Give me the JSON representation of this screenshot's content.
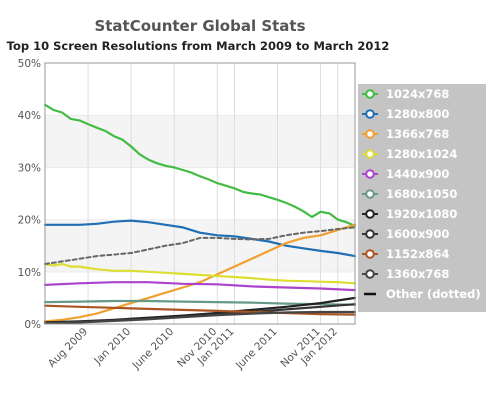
{
  "chart_data": {
    "type": "line",
    "title": "StatCounter Global Stats",
    "subtitle": "Top 10 Screen Resolutions from March 2009 to March 2012",
    "xlabel": "",
    "ylabel": "",
    "y_ticks": [
      "0%",
      "10%",
      "20%",
      "30%",
      "40%",
      "50%"
    ],
    "ylim": [
      0,
      50
    ],
    "x_ticks": [
      {
        "label": "Aug 2009",
        "x": 5
      },
      {
        "label": "Jan 2010",
        "x": 10
      },
      {
        "label": "June 2010",
        "x": 15
      },
      {
        "label": "Nov 2010",
        "x": 20
      },
      {
        "label": "Jan 2011",
        "x": 22
      },
      {
        "label": "June 2011",
        "x": 27
      },
      {
        "label": "Nov 2011",
        "x": 32
      },
      {
        "label": "Jan 2012",
        "x": 34
      }
    ],
    "xlim": [
      0,
      36
    ],
    "grid": "horizontal bands",
    "legend_position": "right",
    "series": [
      {
        "name": "1024x768",
        "color": "#44bb44",
        "dotted": false,
        "x": [
          0,
          1,
          2,
          3,
          4,
          5,
          6,
          7,
          8,
          9,
          10,
          11,
          12,
          13,
          14,
          15,
          16,
          17,
          18,
          19,
          20,
          21,
          22,
          23,
          24,
          25,
          26,
          27,
          28,
          29,
          30,
          31,
          32,
          33,
          34,
          35,
          36
        ],
        "y": [
          42,
          41,
          40.5,
          39.3,
          39,
          38.3,
          37.6,
          37,
          36,
          35.3,
          34,
          32.5,
          31.5,
          30.8,
          30.3,
          30,
          29.5,
          29,
          28.3,
          27.7,
          27,
          26.5,
          26,
          25.3,
          25,
          24.8,
          24.3,
          23.8,
          23.2,
          22.5,
          21.6,
          20.5,
          21.5,
          21.2,
          20,
          19.5,
          18.8
        ]
      },
      {
        "name": "1280x800",
        "color": "#1f6fb5",
        "dotted": false,
        "x": [
          0,
          2,
          4,
          6,
          8,
          10,
          12,
          14,
          16,
          18,
          20,
          22,
          24,
          26,
          28,
          30,
          32,
          34,
          36
        ],
        "y": [
          19,
          19,
          19,
          19.2,
          19.6,
          19.8,
          19.5,
          19,
          18.5,
          17.5,
          17,
          16.8,
          16.3,
          15.8,
          15,
          14.5,
          14,
          13.6,
          13
        ]
      },
      {
        "name": "1366x768",
        "color": "#f0a030",
        "dotted": false,
        "x": [
          0,
          2,
          4,
          6,
          8,
          10,
          12,
          14,
          16,
          18,
          20,
          22,
          24,
          26,
          28,
          30,
          32,
          34,
          36
        ],
        "y": [
          0.5,
          0.8,
          1.3,
          2,
          3,
          4,
          5,
          6,
          7,
          8,
          9.5,
          11,
          12.5,
          14,
          15.5,
          16.5,
          17,
          18,
          19
        ]
      },
      {
        "name": "1280x1024",
        "color": "#dddd33",
        "dotted": false,
        "x": [
          0,
          1,
          2,
          3,
          4,
          6,
          8,
          10,
          12,
          14,
          16,
          18,
          20,
          22,
          24,
          26,
          28,
          30,
          32,
          34,
          36
        ],
        "y": [
          11.5,
          11.2,
          11.5,
          11,
          11,
          10.5,
          10.2,
          10.2,
          10,
          9.8,
          9.6,
          9.4,
          9.2,
          9,
          8.8,
          8.5,
          8.3,
          8.2,
          8.1,
          8,
          7.8
        ]
      },
      {
        "name": "1440x900",
        "color": "#aa44cc",
        "dotted": false,
        "x": [
          0,
          4,
          8,
          12,
          16,
          20,
          24,
          28,
          32,
          36
        ],
        "y": [
          7.5,
          7.8,
          8,
          8,
          7.7,
          7.6,
          7.2,
          7,
          6.8,
          6.5
        ]
      },
      {
        "name": "1680x1050",
        "color": "#669988",
        "dotted": false,
        "x": [
          0,
          4,
          8,
          12,
          16,
          20,
          24,
          28,
          32,
          36
        ],
        "y": [
          4.2,
          4.3,
          4.4,
          4.4,
          4.3,
          4.2,
          4.1,
          3.9,
          3.8,
          3.7
        ]
      },
      {
        "name": "1920x1080",
        "color": "#222222",
        "dotted": false,
        "x": [
          0,
          4,
          8,
          12,
          16,
          20,
          24,
          28,
          32,
          36
        ],
        "y": [
          0.3,
          0.5,
          0.8,
          1.2,
          1.6,
          2.1,
          2.7,
          3.3,
          4,
          5
        ]
      },
      {
        "name": "1600x900",
        "color": "#333333",
        "dotted": false,
        "x": [
          0,
          4,
          8,
          12,
          16,
          20,
          24,
          28,
          32,
          36
        ],
        "y": [
          0.2,
          0.4,
          0.7,
          1,
          1.4,
          1.8,
          2.3,
          2.8,
          3.3,
          3.8
        ]
      },
      {
        "name": "1152x864",
        "color": "#aa5522",
        "dotted": false,
        "x": [
          0,
          4,
          8,
          12,
          16,
          20,
          24,
          28,
          32,
          36
        ],
        "y": [
          3.5,
          3.3,
          3.1,
          2.9,
          2.7,
          2.5,
          2.3,
          2.1,
          1.9,
          1.8
        ]
      },
      {
        "name": "1360x768",
        "color": "#444444",
        "dotted": false,
        "x": [
          0,
          4,
          8,
          12,
          16,
          20,
          24,
          28,
          32,
          36
        ],
        "y": [
          0.2,
          0.3,
          0.6,
          0.9,
          1.3,
          1.7,
          2,
          2.2,
          2.3,
          2.3
        ]
      },
      {
        "name": "Other (dotted)",
        "color": "#666666",
        "dotted": true,
        "x": [
          0,
          2,
          4,
          6,
          8,
          10,
          12,
          14,
          16,
          18,
          20,
          22,
          24,
          26,
          28,
          30,
          32,
          34,
          36
        ],
        "y": [
          11.5,
          12,
          12.5,
          13,
          13.3,
          13.6,
          14.3,
          15,
          15.5,
          16.5,
          16.5,
          16.3,
          16.2,
          16.3,
          17,
          17.5,
          17.8,
          18.2,
          18.5
        ]
      }
    ]
  }
}
